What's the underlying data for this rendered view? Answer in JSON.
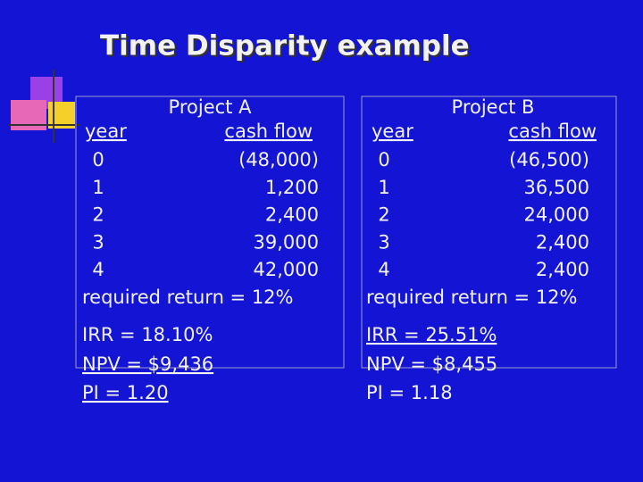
{
  "title": "Time Disparity example",
  "projects": [
    {
      "heading": "Project A",
      "col_headers": [
        "year",
        "cash flow"
      ],
      "rows": [
        [
          "0",
          "(48,000)"
        ],
        [
          "1",
          "1,200"
        ],
        [
          "2",
          "2,400"
        ],
        [
          "3",
          "39,000"
        ],
        [
          "4",
          "42,000"
        ]
      ],
      "required_return": "required return = 12%",
      "results": [
        "IRR = 18.10%",
        "NPV = $9,436",
        "PI = 1.20"
      ]
    },
    {
      "heading": "Project B",
      "col_headers": [
        "year",
        "cash flow"
      ],
      "rows": [
        [
          "0",
          "(46,500)"
        ],
        [
          "1",
          "36,500"
        ],
        [
          "2",
          "24,000"
        ],
        [
          "3",
          "2,400"
        ],
        [
          "4",
          "2,400"
        ]
      ],
      "required_return": "required return = 12%",
      "results": [
        "IRR = 25.51%",
        "NPV = $8,455",
        "PI = 1.18"
      ]
    }
  ]
}
